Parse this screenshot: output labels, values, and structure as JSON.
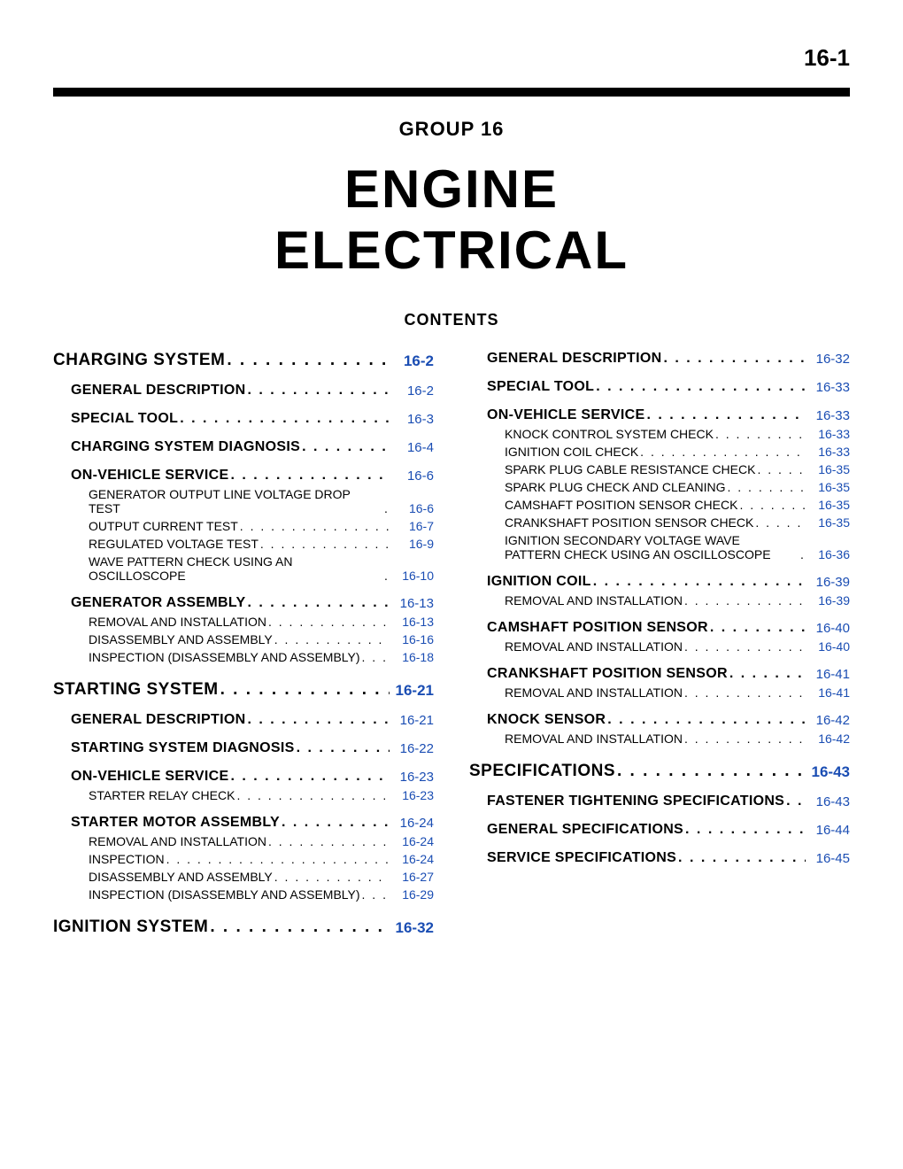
{
  "page_number": "16-1",
  "group_label": "GROUP 16",
  "main_title_line1": "ENGINE",
  "main_title_line2": "ELECTRICAL",
  "contents_label": "CONTENTS",
  "colors": {
    "link": "#1a4db3",
    "text": "#000000",
    "rule": "#000000",
    "background": "#ffffff"
  },
  "typography": {
    "page_number_fontsize": 26,
    "group_fontsize": 22,
    "title_fontsize": 60,
    "contents_fontsize": 18,
    "lvl0_fontsize": 19,
    "lvl1_fontsize": 16,
    "lvl2_fontsize": 14
  },
  "columns": [
    [
      {
        "level": 0,
        "label": "CHARGING SYSTEM",
        "page": "16-2"
      },
      {
        "level": 1,
        "label": "GENERAL DESCRIPTION",
        "page": "16-2"
      },
      {
        "level": 1,
        "label": "SPECIAL TOOL",
        "page": "16-3"
      },
      {
        "level": 1,
        "label": "CHARGING SYSTEM DIAGNOSIS",
        "page": "16-4"
      },
      {
        "level": 1,
        "label": "ON-VEHICLE SERVICE",
        "page": "16-6"
      },
      {
        "level": 2,
        "label": "GENERATOR OUTPUT LINE VOLTAGE DROP TEST",
        "page": "16-6",
        "wrap": true
      },
      {
        "level": 2,
        "label": "OUTPUT CURRENT TEST",
        "page": "16-7"
      },
      {
        "level": 2,
        "label": "REGULATED VOLTAGE TEST",
        "page": "16-9"
      },
      {
        "level": 2,
        "label": "WAVE PATTERN CHECK USING AN OSCILLOSCOPE",
        "page": "16-10",
        "wrap": true
      },
      {
        "level": 1,
        "label": "GENERATOR ASSEMBLY",
        "page": "16-13"
      },
      {
        "level": 2,
        "label": "REMOVAL AND INSTALLATION",
        "page": "16-13"
      },
      {
        "level": 2,
        "label": "DISASSEMBLY AND ASSEMBLY",
        "page": "16-16"
      },
      {
        "level": 2,
        "label": "INSPECTION (DISASSEMBLY AND ASSEMBLY)",
        "page": "16-18",
        "wrap": true
      },
      {
        "level": 0,
        "label": "STARTING SYSTEM",
        "page": "16-21"
      },
      {
        "level": 1,
        "label": "GENERAL DESCRIPTION",
        "page": "16-21"
      },
      {
        "level": 1,
        "label": "STARTING SYSTEM DIAGNOSIS",
        "page": "16-22"
      },
      {
        "level": 1,
        "label": "ON-VEHICLE SERVICE",
        "page": "16-23"
      },
      {
        "level": 2,
        "label": "STARTER RELAY CHECK",
        "page": "16-23"
      },
      {
        "level": 1,
        "label": "STARTER MOTOR ASSEMBLY",
        "page": "16-24"
      },
      {
        "level": 2,
        "label": "REMOVAL AND INSTALLATION",
        "page": "16-24"
      },
      {
        "level": 2,
        "label": "INSPECTION",
        "page": "16-24"
      },
      {
        "level": 2,
        "label": "DISASSEMBLY AND ASSEMBLY",
        "page": "16-27"
      },
      {
        "level": 2,
        "label": "INSPECTION (DISASSEMBLY AND ASSEMBLY)",
        "page": "16-29",
        "wrap": true
      },
      {
        "level": 0,
        "label": "IGNITION SYSTEM",
        "page": "16-32"
      }
    ],
    [
      {
        "level": 1,
        "label": "GENERAL DESCRIPTION",
        "page": "16-32"
      },
      {
        "level": 1,
        "label": "SPECIAL TOOL",
        "page": "16-33"
      },
      {
        "level": 1,
        "label": "ON-VEHICLE SERVICE",
        "page": "16-33"
      },
      {
        "level": 2,
        "label": "KNOCK CONTROL SYSTEM CHECK",
        "page": "16-33"
      },
      {
        "level": 2,
        "label": "IGNITION COIL CHECK",
        "page": "16-33"
      },
      {
        "level": 2,
        "label": "SPARK PLUG CABLE RESISTANCE CHECK",
        "page": "16-35",
        "wrap": true
      },
      {
        "level": 2,
        "label": "SPARK PLUG CHECK AND CLEANING",
        "page": "16-35"
      },
      {
        "level": 2,
        "label": "CAMSHAFT POSITION SENSOR CHECK",
        "page": "16-35",
        "wrap": true
      },
      {
        "level": 2,
        "label": "CRANKSHAFT POSITION SENSOR CHECK",
        "page": "16-35",
        "wrap": true
      },
      {
        "level": 2,
        "label": "IGNITION SECONDARY VOLTAGE WAVE PATTERN CHECK USING AN OSCILLOSCOPE",
        "page": "16-36",
        "wrap": true
      },
      {
        "level": 1,
        "label": "IGNITION COIL",
        "page": "16-39"
      },
      {
        "level": 2,
        "label": "REMOVAL AND INSTALLATION",
        "page": "16-39"
      },
      {
        "level": 1,
        "label": "CAMSHAFT POSITION SENSOR",
        "page": "16-40"
      },
      {
        "level": 2,
        "label": "REMOVAL AND INSTALLATION",
        "page": "16-40"
      },
      {
        "level": 1,
        "label": "CRANKSHAFT POSITION SENSOR",
        "page": "16-41"
      },
      {
        "level": 2,
        "label": "REMOVAL AND INSTALLATION",
        "page": "16-41"
      },
      {
        "level": 1,
        "label": "KNOCK SENSOR",
        "page": "16-42"
      },
      {
        "level": 2,
        "label": "REMOVAL AND INSTALLATION",
        "page": "16-42"
      },
      {
        "level": 0,
        "label": "SPECIFICATIONS",
        "page": "16-43"
      },
      {
        "level": 1,
        "label": "FASTENER TIGHTENING SPECIFICATIONS",
        "page": "16-43",
        "wrap": true
      },
      {
        "level": 1,
        "label": "GENERAL SPECIFICATIONS",
        "page": "16-44"
      },
      {
        "level": 1,
        "label": "SERVICE SPECIFICATIONS",
        "page": "16-45"
      }
    ]
  ]
}
